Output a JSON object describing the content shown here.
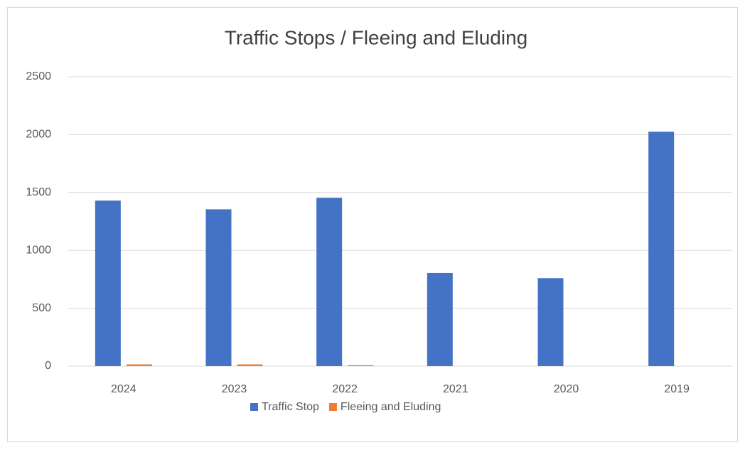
{
  "chart_data": {
    "type": "bar",
    "title": "Traffic Stops / Fleeing and Eluding",
    "categories": [
      "2024",
      "2023",
      "2022",
      "2021",
      "2020",
      "2019"
    ],
    "series": [
      {
        "name": "Traffic Stop",
        "color": "#4472c4",
        "values": [
          1430,
          1355,
          1455,
          805,
          760,
          2025
        ]
      },
      {
        "name": "Fleeing and Eluding",
        "color": "#ed7d31",
        "values": [
          15,
          15,
          8,
          0,
          0,
          0
        ]
      }
    ],
    "ylim": [
      0,
      2500
    ],
    "yticks": [
      0,
      500,
      1000,
      1500,
      2000,
      2500
    ],
    "grid": true,
    "legend": "bottom"
  }
}
